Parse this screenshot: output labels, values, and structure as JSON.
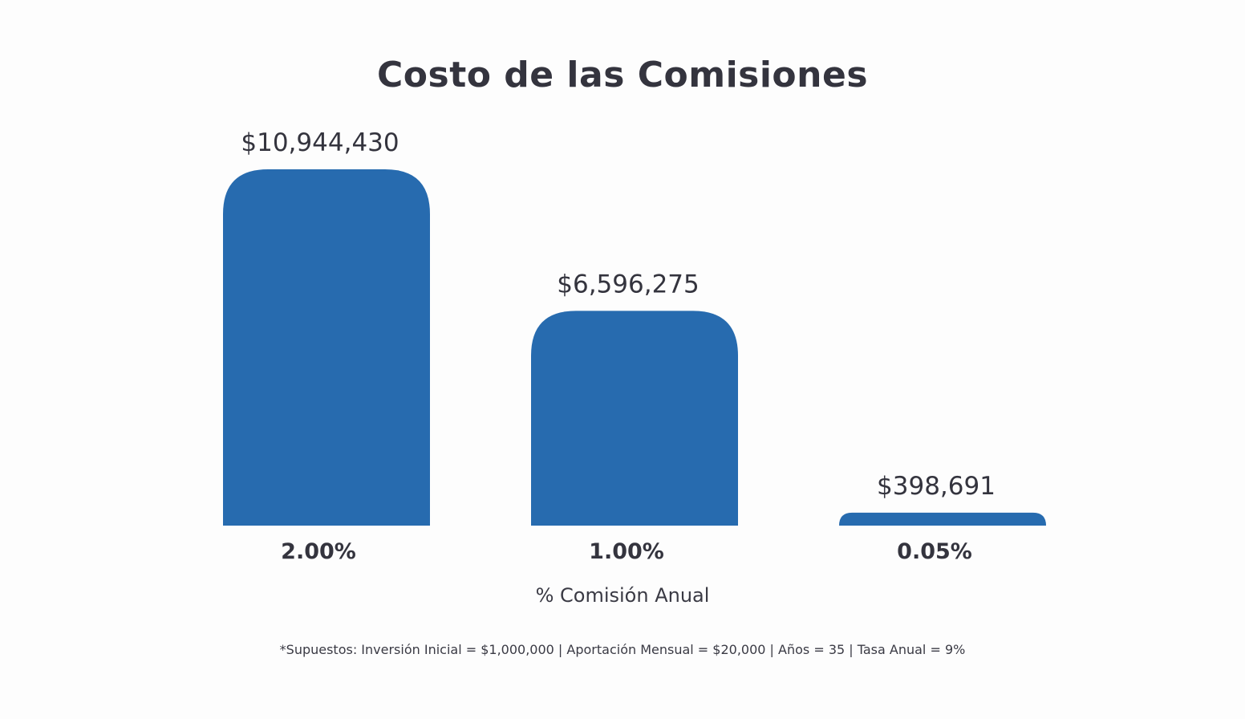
{
  "chart_data": {
    "type": "bar",
    "title": "Costo de las Comisiones",
    "xlabel": "% Comisión Anual",
    "ylabel": "",
    "categories": [
      "2.00%",
      "1.00%",
      "0.05%"
    ],
    "values": [
      10944430,
      6596275,
      398691
    ],
    "data_labels": [
      "$10,944,430",
      "$6,596,275",
      "$398,691"
    ],
    "ylim": [
      0,
      10944430
    ],
    "grid": false,
    "bar_color": "#276baf"
  },
  "footnote": "*Supuestos: Inversión Inicial = $1,000,000 | Aportación Mensual = $20,000 | Años = 35 | Tasa Anual = 9%"
}
